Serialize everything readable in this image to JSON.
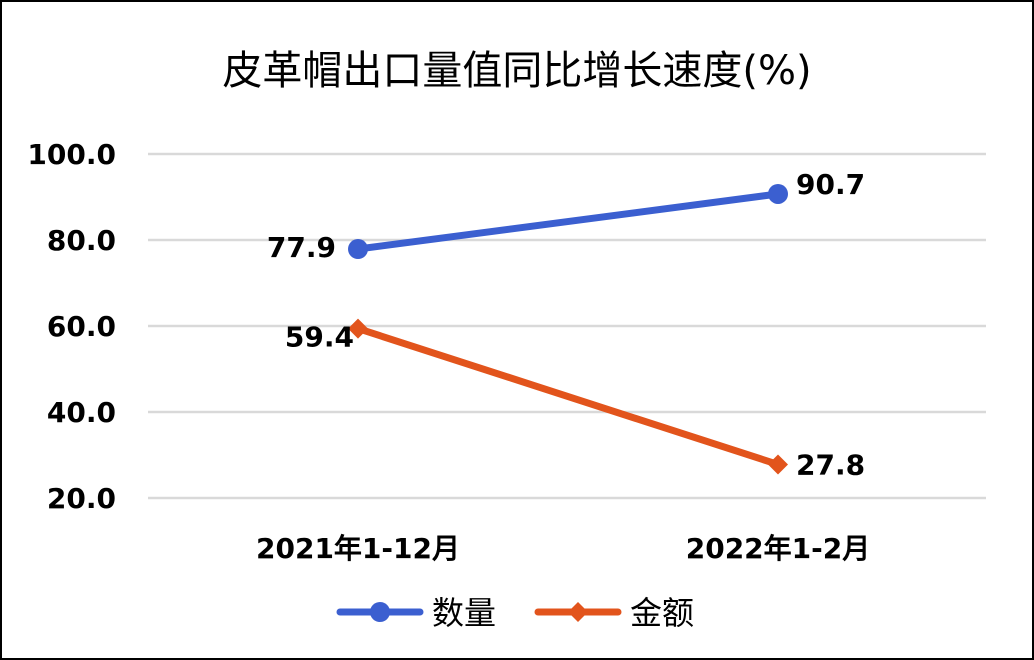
{
  "chart_data": {
    "type": "line",
    "title": "皮革帽出口量值同比增长速度(%)",
    "categories": [
      "2021年1-12月",
      "2022年1-2月"
    ],
    "ylim": [
      20,
      100
    ],
    "yticks": [
      "100.0",
      "80.0",
      "60.0",
      "40.0",
      "20.0"
    ],
    "grid": true,
    "legend_position": "bottom",
    "series": [
      {
        "name": "数量",
        "values": [
          77.9,
          90.7
        ],
        "labels": [
          "77.9",
          "90.7"
        ],
        "color": "#3B5FD0",
        "marker": "circle"
      },
      {
        "name": "金额",
        "values": [
          59.4,
          27.8
        ],
        "labels": [
          "59.4",
          "27.8"
        ],
        "color": "#E2541C",
        "marker": "diamond"
      }
    ]
  }
}
